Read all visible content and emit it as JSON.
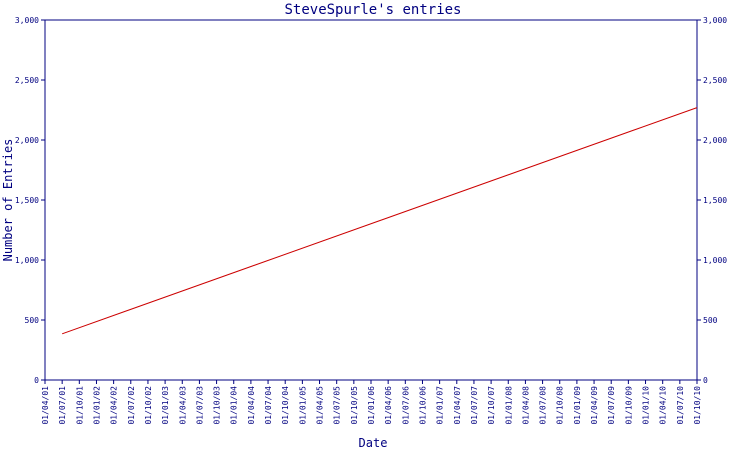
{
  "chart_data": {
    "type": "line",
    "title": "SteveSpurle's entries",
    "xlabel": "Date",
    "ylabel": "Number of Entries",
    "ylim": [
      0,
      3000
    ],
    "y_ticks": [
      0,
      500,
      1000,
      1500,
      2000,
      2500,
      3000
    ],
    "y_tick_labels": [
      "0",
      "500",
      "1,000",
      "1,500",
      "2,000",
      "2,500",
      "3,000"
    ],
    "x_tick_labels": [
      "01/04/01",
      "01/07/01",
      "01/10/01",
      "01/01/02",
      "01/04/02",
      "01/07/02",
      "01/10/02",
      "01/01/03",
      "01/04/03",
      "01/07/03",
      "01/10/03",
      "01/01/04",
      "01/04/04",
      "01/07/04",
      "01/10/04",
      "01/01/05",
      "01/04/05",
      "01/07/05",
      "01/10/05",
      "01/01/06",
      "01/04/06",
      "01/07/06",
      "01/10/06",
      "01/01/07",
      "01/04/07",
      "01/07/07",
      "01/10/07",
      "01/01/08",
      "01/04/08",
      "01/07/08",
      "01/10/08",
      "01/01/09",
      "01/04/09",
      "01/07/09",
      "01/10/09",
      "01/01/10",
      "01/04/10",
      "01/07/10",
      "01/10/10"
    ],
    "series": [
      {
        "x": [
          "01/07/01",
          "01/10/10"
        ],
        "values": [
          385,
          2270
        ]
      }
    ],
    "grid": false,
    "axis_color": "#000080",
    "text_color": "#000080",
    "line_color": "#cc0000"
  }
}
